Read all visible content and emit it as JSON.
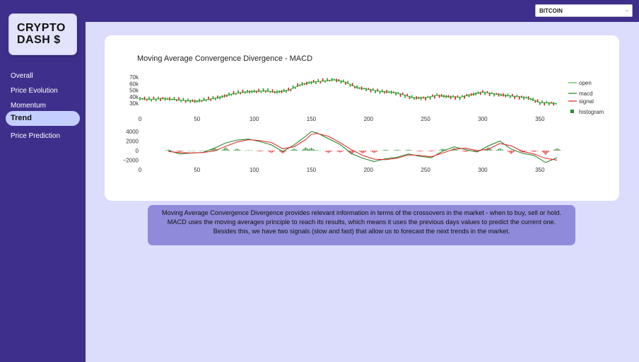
{
  "app": {
    "logo_line1": "CRYPTO",
    "logo_line2": "DASH $"
  },
  "sidebar": {
    "items": [
      {
        "label": "Overall",
        "active": false
      },
      {
        "label": "Price Evolution",
        "active": false
      },
      {
        "label": "Momentum",
        "active": false
      },
      {
        "label": "Trend",
        "active": true
      },
      {
        "label": "Price Prediction",
        "active": false
      }
    ]
  },
  "header": {
    "coin_select": {
      "value": "BITCOIN",
      "icon": "chevron-down-icon"
    }
  },
  "description": {
    "line1": "Moving Average Convergence Divergence provides relevant information in terms of the crossovers in the market - when to buy, sell or hold.",
    "line2": "MACD uses the moving averages principle to reach its results, which means it uses the previous days values to predict the current one.",
    "line3": "Besides this, we have two signals (slow and fast) that allow us to forecast the next trends in the market."
  },
  "colors": {
    "open": "#2ca02c",
    "macd": "#1f7a1f",
    "signal": "#e02020",
    "hist_pos": "#2e8b2e",
    "hist_neg": "#e03030",
    "candle_up": "#2a9d2a",
    "candle_down": "#d62020"
  },
  "chart_data": [
    {
      "type": "line",
      "title": "Moving Average Convergence Divergence - MACD",
      "series_names": [
        "open"
      ],
      "x_ticks": [
        "0",
        "50",
        "100",
        "150",
        "200",
        "250",
        "300",
        "350"
      ],
      "y_ticks": [
        "70k",
        "60k",
        "50k",
        "40k",
        "30k"
      ],
      "ylim": [
        30000,
        70000
      ],
      "x": [
        0,
        10,
        20,
        30,
        40,
        50,
        60,
        70,
        80,
        90,
        100,
        110,
        120,
        130,
        140,
        150,
        160,
        170,
        180,
        190,
        200,
        210,
        220,
        230,
        240,
        250,
        260,
        270,
        280,
        290,
        300,
        310,
        320,
        330,
        340,
        350,
        360,
        365
      ],
      "open": [
        37000,
        36000,
        37000,
        36000,
        34000,
        33000,
        36000,
        39000,
        44000,
        47000,
        48000,
        49000,
        47000,
        50000,
        58000,
        62000,
        64000,
        66000,
        62000,
        54000,
        51000,
        48000,
        47000,
        43000,
        38000,
        38000,
        42000,
        40000,
        39000,
        43000,
        47000,
        44000,
        42000,
        40000,
        38000,
        31000,
        30000,
        29000
      ]
    },
    {
      "type": "line",
      "series_names": [
        "macd",
        "signal",
        "histogram"
      ],
      "x_ticks": [
        "0",
        "50",
        "100",
        "150",
        "200",
        "250",
        "300",
        "350"
      ],
      "y_ticks": [
        "4000",
        "2000",
        "0",
        "−2000"
      ],
      "ylim": [
        -2000,
        4000
      ],
      "x": [
        25,
        35,
        45,
        55,
        65,
        75,
        85,
        95,
        105,
        115,
        125,
        135,
        145,
        150,
        155,
        165,
        175,
        185,
        195,
        205,
        215,
        225,
        235,
        245,
        255,
        265,
        275,
        285,
        295,
        305,
        315,
        325,
        335,
        345,
        355,
        365
      ],
      "macd": [
        0,
        -700,
        -500,
        -400,
        500,
        1600,
        2200,
        2400,
        1900,
        1200,
        -200,
        1200,
        3000,
        4000,
        3700,
        2500,
        1300,
        -600,
        -1600,
        -2300,
        -1700,
        -1400,
        -700,
        -1200,
        -1500,
        -100,
        800,
        200,
        -300,
        1000,
        2000,
        300,
        -600,
        -1000,
        -2500,
        -1500
      ],
      "signal": [
        -200,
        -400,
        -500,
        -400,
        -100,
        900,
        1800,
        2300,
        2100,
        1700,
        400,
        800,
        2300,
        3400,
        3600,
        3000,
        1700,
        200,
        -1000,
        -1800,
        -1900,
        -1600,
        -900,
        -1000,
        -1300,
        -500,
        300,
        500,
        0,
        300,
        1500,
        1000,
        -200,
        -700,
        -1600,
        -2000
      ],
      "histogram": [
        200,
        -300,
        0,
        0,
        600,
        700,
        400,
        100,
        -200,
        -500,
        -600,
        400,
        700,
        600,
        100,
        -500,
        -400,
        -800,
        -600,
        -500,
        200,
        200,
        200,
        -200,
        -200,
        400,
        500,
        -300,
        -300,
        700,
        500,
        -700,
        -400,
        -300,
        -900,
        500
      ]
    }
  ]
}
